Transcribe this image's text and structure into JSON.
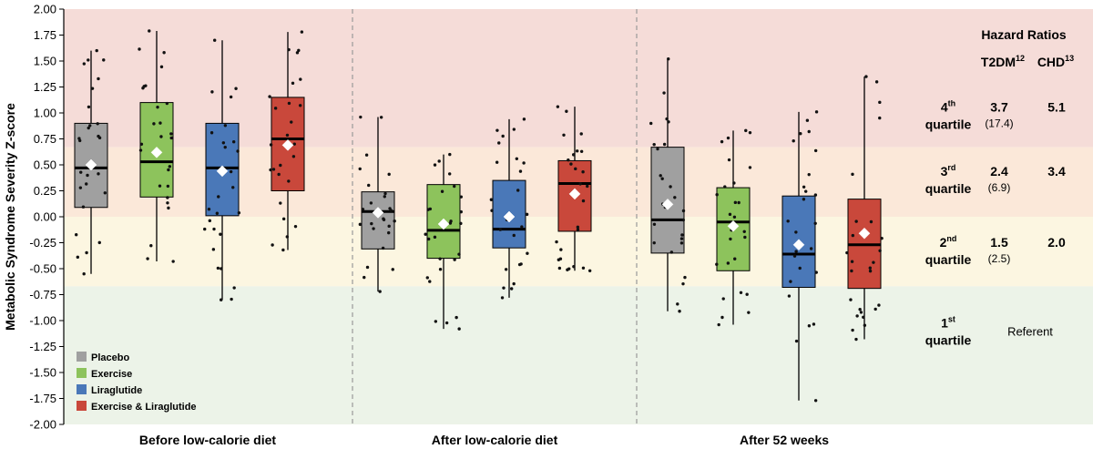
{
  "chart_data": {
    "type": "box",
    "ylabel": "Metabolic Syndrome Severity Z-score",
    "xlabel": "",
    "ylim": [
      -2.0,
      2.0
    ],
    "yticks": [
      "2.00",
      "1.75",
      "1.50",
      "1.25",
      "1.00",
      "0.75",
      "0.50",
      "0.25",
      "0.00",
      "-0.25",
      "-0.50",
      "-0.75",
      "-1.00",
      "-1.25",
      "-1.50",
      "-1.75",
      "-2.00"
    ],
    "categories": [
      "Before low-calorie diet",
      "After low-calorie diet",
      "After 52 weeks"
    ],
    "legend_position": "bottom-left",
    "bands": [
      {
        "name": "4th quartile",
        "from": 0.67,
        "to": 2.0,
        "color": "#f5dcd8"
      },
      {
        "name": "3rd quartile",
        "from": 0.0,
        "to": 0.67,
        "color": "#fbe8d9"
      },
      {
        "name": "2nd quartile",
        "from": -0.67,
        "to": 0.0,
        "color": "#fcf6e1"
      },
      {
        "name": "1st quartile",
        "from": -2.0,
        "to": -0.67,
        "color": "#ecf3e8"
      }
    ],
    "series": [
      {
        "name": "Placebo",
        "color": "#a0a0a0",
        "boxes": [
          {
            "q1": 0.09,
            "median": 0.47,
            "q3": 0.9,
            "min": -0.55,
            "max": 1.6,
            "mean": 0.5
          },
          {
            "q1": -0.31,
            "median": 0.05,
            "q3": 0.24,
            "min": -0.72,
            "max": 0.96,
            "mean": 0.04
          },
          {
            "q1": -0.35,
            "median": -0.03,
            "q3": 0.67,
            "min": -0.91,
            "max": 1.52,
            "mean": 0.12
          }
        ]
      },
      {
        "name": "Exercise",
        "color": "#8dc35c",
        "boxes": [
          {
            "q1": 0.19,
            "median": 0.53,
            "q3": 1.1,
            "min": -0.43,
            "max": 1.79,
            "mean": 0.62
          },
          {
            "q1": -0.4,
            "median": -0.13,
            "q3": 0.31,
            "min": -1.08,
            "max": 0.6,
            "mean": -0.07
          },
          {
            "q1": -0.52,
            "median": -0.05,
            "q3": 0.28,
            "min": -1.04,
            "max": 0.83,
            "mean": -0.09
          }
        ]
      },
      {
        "name": "Liraglutide",
        "color": "#4a78b8",
        "boxes": [
          {
            "q1": 0.01,
            "median": 0.47,
            "q3": 0.9,
            "min": -0.8,
            "max": 1.7,
            "mean": 0.44
          },
          {
            "q1": -0.3,
            "median": -0.12,
            "q3": 0.35,
            "min": -0.78,
            "max": 0.94,
            "mean": 0.0
          },
          {
            "q1": -0.68,
            "median": -0.36,
            "q3": 0.2,
            "min": -1.77,
            "max": 1.01,
            "mean": -0.27
          }
        ]
      },
      {
        "name": "Exercise & Liraglutide",
        "color": "#c9483b",
        "boxes": [
          {
            "q1": 0.25,
            "median": 0.75,
            "q3": 1.15,
            "min": -0.32,
            "max": 1.78,
            "mean": 0.69
          },
          {
            "q1": -0.14,
            "median": 0.32,
            "q3": 0.54,
            "min": -0.52,
            "max": 1.06,
            "mean": 0.22
          },
          {
            "q1": -0.69,
            "median": -0.27,
            "q3": 0.17,
            "min": -1.18,
            "max": 1.35,
            "mean": -0.16
          }
        ]
      }
    ],
    "hazard_ratios": {
      "title": "Hazard Ratios",
      "col1": {
        "label": "T2DM",
        "sup": "12"
      },
      "col2": {
        "label": "CHD",
        "sup": "13"
      },
      "rows": [
        {
          "ordinal": "4",
          "sup": "th",
          "word": "quartile",
          "t2dm": "3.7",
          "t2dm_paren": "(17.4)",
          "chd": "5.1",
          "y": 0.96
        },
        {
          "ordinal": "3",
          "sup": "rd",
          "word": "quartile",
          "t2dm": "2.4",
          "t2dm_paren": "(6.9)",
          "chd": "3.4",
          "y": 0.34
        },
        {
          "ordinal": "2",
          "sup": "nd",
          "word": "quartile",
          "t2dm": "1.5",
          "t2dm_paren": "(2.5)",
          "chd": "2.0",
          "y": -0.34
        },
        {
          "ordinal": "1",
          "sup": "st",
          "word": "quartile",
          "t2dm": "",
          "t2dm_paren": "",
          "chd": "",
          "referent": "Referent",
          "y": -1.12
        }
      ]
    }
  }
}
